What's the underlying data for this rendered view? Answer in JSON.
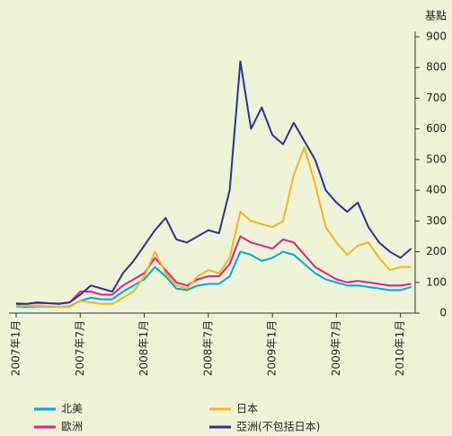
{
  "chart_data": {
    "type": "line",
    "y_label": "基點",
    "categories": [
      "2007年1月",
      null,
      null,
      null,
      null,
      null,
      "2007年7月",
      null,
      null,
      null,
      null,
      null,
      "2008年1月",
      null,
      null,
      null,
      null,
      null,
      "2008年7月",
      null,
      null,
      null,
      null,
      null,
      "2009年1月",
      null,
      null,
      null,
      null,
      null,
      "2009年7月",
      null,
      null,
      null,
      null,
      null,
      "2010年1月",
      null
    ],
    "series": [
      {
        "name": "北美",
        "color": "#00a9e0",
        "values": [
          22,
          20,
          22,
          21,
          20,
          22,
          40,
          50,
          45,
          45,
          70,
          90,
          110,
          150,
          120,
          80,
          75,
          90,
          95,
          95,
          120,
          200,
          190,
          170,
          180,
          200,
          190,
          160,
          130,
          110,
          100,
          90,
          90,
          85,
          80,
          75,
          75,
          85
        ]
      },
      {
        "name": "歐洲",
        "color": "#e0218a",
        "values": [
          32,
          30,
          33,
          32,
          31,
          34,
          70,
          70,
          60,
          60,
          90,
          110,
          130,
          180,
          140,
          100,
          90,
          110,
          120,
          120,
          160,
          250,
          230,
          220,
          210,
          240,
          230,
          190,
          150,
          130,
          110,
          100,
          105,
          100,
          95,
          90,
          90,
          95
        ]
      },
      {
        "name": "日本",
        "color": "#f5b51b",
        "values": [
          25,
          23,
          24,
          22,
          20,
          20,
          40,
          35,
          30,
          30,
          50,
          70,
          120,
          200,
          130,
          90,
          80,
          120,
          140,
          130,
          180,
          330,
          300,
          290,
          280,
          300,
          450,
          540,
          420,
          280,
          230,
          190,
          220,
          230,
          180,
          140,
          150,
          150
        ]
      },
      {
        "name": "亞洲(不包括日本)",
        "color": "#2e3192",
        "values": [
          30,
          30,
          35,
          32,
          30,
          35,
          60,
          90,
          80,
          70,
          130,
          170,
          220,
          270,
          310,
          240,
          230,
          250,
          270,
          260,
          400,
          820,
          600,
          670,
          580,
          550,
          620,
          560,
          500,
          400,
          360,
          330,
          360,
          280,
          230,
          200,
          180,
          210
        ]
      }
    ],
    "ylim": [
      0,
      900
    ],
    "yticks": [
      0,
      100,
      200,
      300,
      400,
      500,
      600,
      700,
      800,
      900
    ]
  }
}
